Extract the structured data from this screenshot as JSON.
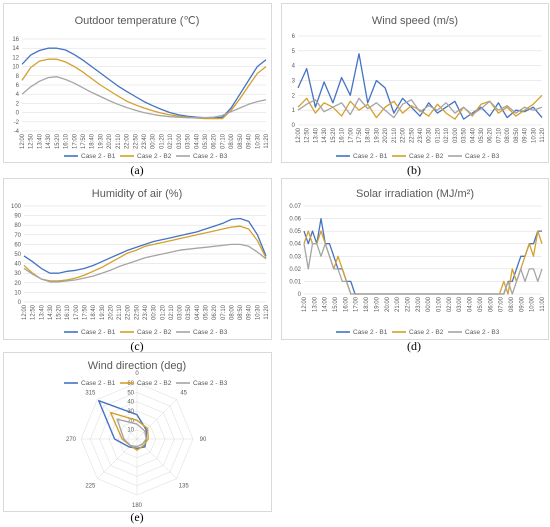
{
  "colors": {
    "b1": "#4472c4",
    "b2": "#d4a02a",
    "b3": "#a5a5a5",
    "grid": "#d9d9d9",
    "text": "#595959"
  },
  "legend": [
    "Case 2 - B1",
    "Case 2 - B2",
    "Case 2 - B3"
  ],
  "time_labels": [
    "12:00",
    "12:50",
    "13:40",
    "14:30",
    "15:20",
    "16:10",
    "17:00",
    "17:50",
    "18:40",
    "19:30",
    "20:20",
    "21:10",
    "22:00",
    "22:50",
    "23:40",
    "00:30",
    "01:20",
    "02:10",
    "03:00",
    "03:50",
    "04:40",
    "05:30",
    "06:20",
    "07:10",
    "08:00",
    "08:50",
    "09:40",
    "10:30",
    "11:20"
  ],
  "solar_time_labels": [
    "12:00",
    "13:00",
    "14:00",
    "15:00",
    "16:00",
    "17:00",
    "18:00",
    "19:00",
    "20:00",
    "21:00",
    "22:00",
    "23:00",
    "00:00",
    "01:00",
    "02:00",
    "03:00",
    "04:00",
    "05:00",
    "06:00",
    "07:00",
    "08:00",
    "09:00",
    "10:00",
    "11:00"
  ],
  "captions": {
    "a": "(a)",
    "b": "(b)",
    "c": "(c)",
    "d": "(d)",
    "e": "(e)"
  },
  "chart_data": [
    {
      "id": "temperature",
      "type": "line",
      "title": "Outdoor temperature (℃)",
      "ylim": [
        -4,
        16
      ],
      "yticks": [
        -4,
        -2,
        0,
        2,
        4,
        6,
        8,
        10,
        12,
        14,
        16
      ],
      "series": [
        {
          "name": "Case 2 - B1",
          "values": [
            10.5,
            12.5,
            13.5,
            14,
            14,
            13.6,
            12.6,
            11.4,
            10,
            8.6,
            7.2,
            5.8,
            4.6,
            3.5,
            2.4,
            1.5,
            0.7,
            0,
            -0.5,
            -0.8,
            -1,
            -1.1,
            -1.2,
            -1,
            1,
            4,
            7,
            10,
            11.5
          ]
        },
        {
          "name": "Case 2 - B2",
          "values": [
            7,
            9.8,
            11.2,
            11.6,
            11.6,
            11,
            10,
            8.8,
            7.4,
            6,
            4.8,
            3.6,
            2.5,
            1.7,
            1,
            0.4,
            -0.1,
            -0.5,
            -0.8,
            -1,
            -1.2,
            -1.3,
            -1.3,
            -1.3,
            0.5,
            3,
            5.8,
            8.5,
            10
          ]
        },
        {
          "name": "Case 2 - B3",
          "values": [
            4,
            5.6,
            6.8,
            7.6,
            7.8,
            7.2,
            6.4,
            5.4,
            4.4,
            3.5,
            2.6,
            1.8,
            1.1,
            0.5,
            0,
            -0.4,
            -0.7,
            -0.9,
            -1,
            -1.1,
            -1.1,
            -1.1,
            -1,
            -0.6,
            0.2,
            1,
            1.8,
            2.4,
            2.8
          ]
        }
      ]
    },
    {
      "id": "wind_speed",
      "type": "line",
      "title": "Wind speed (m/s)",
      "ylim": [
        0,
        6
      ],
      "yticks": [
        0,
        1,
        2,
        3,
        4,
        5,
        6
      ],
      "series": [
        {
          "name": "Case 2 - B1",
          "values": [
            2.5,
            3.8,
            1.2,
            2.9,
            1.5,
            3.2,
            2,
            4.8,
            1.5,
            3,
            2.5,
            0.8,
            1.8,
            1.2,
            0.6,
            1.5,
            0.8,
            1.2,
            1.6,
            0.4,
            0.8,
            1.2,
            0.6,
            1.5,
            0.5,
            1,
            0.9,
            1.2,
            0.5
          ]
        },
        {
          "name": "Case 2 - B2",
          "values": [
            1.2,
            1.8,
            0.8,
            1.5,
            1.2,
            0.6,
            1.6,
            1,
            1.4,
            0.5,
            1.2,
            1.6,
            0.8,
            1.3,
            1,
            0.6,
            1.4,
            0.8,
            0.4,
            1.2,
            0.6,
            1.4,
            1.6,
            0.8,
            1.2,
            0.6,
            1,
            1.4,
            2
          ]
        },
        {
          "name": "Case 2 - B3",
          "values": [
            1,
            1.4,
            1.7,
            0.9,
            1.2,
            1.5,
            0.7,
            1.8,
            1.1,
            1.5,
            1,
            0.5,
            1.4,
            1.7,
            0.9,
            1.3,
            1,
            1.5,
            0.8,
            1.2,
            0.7,
            1.1,
            1.6,
            1,
            1.3,
            0.8,
            1.2,
            1,
            1.2
          ]
        }
      ]
    },
    {
      "id": "humidity",
      "type": "line",
      "title": "Humidity of air (%)",
      "ylim": [
        0,
        100
      ],
      "yticks": [
        0,
        10,
        20,
        30,
        40,
        50,
        60,
        70,
        80,
        90,
        100
      ],
      "series": [
        {
          "name": "Case 2 - B1",
          "values": [
            48,
            42,
            35,
            30,
            30,
            32,
            33,
            35,
            38,
            42,
            46,
            50,
            54,
            57,
            60,
            63,
            65,
            67,
            69,
            71,
            73,
            76,
            79,
            82,
            86,
            87,
            84,
            70,
            48
          ]
        },
        {
          "name": "Case 2 - B2",
          "values": [
            38,
            30,
            24,
            22,
            22,
            23,
            25,
            28,
            32,
            36,
            41,
            46,
            51,
            54,
            58,
            60,
            62,
            64,
            66,
            68,
            70,
            72,
            74,
            76,
            78,
            79,
            76,
            64,
            46
          ]
        },
        {
          "name": "Case 2 - B3",
          "values": [
            35,
            29,
            24,
            21,
            21,
            22,
            23,
            25,
            27,
            30,
            33,
            37,
            40,
            43,
            46,
            48,
            50,
            52,
            54,
            55,
            56,
            57,
            58,
            59,
            60,
            60,
            58,
            52,
            45
          ]
        }
      ]
    },
    {
      "id": "solar",
      "type": "line",
      "title": "Solar irradiation (MJ/m²)",
      "ylim": [
        0,
        0.07
      ],
      "yticks": [
        0,
        0.01,
        0.02,
        0.03,
        0.04,
        0.05,
        0.06,
        0.07
      ],
      "series": [
        {
          "name": "Case 2 - B1",
          "values": [
            0.05,
            0.04,
            0.05,
            0.04,
            0.06,
            0.04,
            0.04,
            0.03,
            0.02,
            0.02,
            0.01,
            0.01,
            0,
            0,
            0,
            0,
            0,
            0,
            0,
            0,
            0,
            0,
            0,
            0,
            0,
            0,
            0,
            0,
            0,
            0,
            0,
            0,
            0,
            0,
            0,
            0,
            0,
            0,
            0,
            0,
            0,
            0,
            0,
            0,
            0,
            0,
            0,
            0,
            0.01,
            0.01,
            0.02,
            0.03,
            0.03,
            0.04,
            0.04,
            0.05,
            0.05
          ]
        },
        {
          "name": "Case 2 - B2",
          "values": [
            0.04,
            0.05,
            0.04,
            0.04,
            0.05,
            0.04,
            0.03,
            0.02,
            0.03,
            0.02,
            0.01,
            0,
            0,
            0,
            0,
            0,
            0,
            0,
            0,
            0,
            0,
            0,
            0,
            0,
            0,
            0,
            0,
            0,
            0,
            0,
            0,
            0,
            0,
            0,
            0,
            0,
            0,
            0,
            0,
            0,
            0,
            0,
            0,
            0,
            0,
            0,
            0,
            0.01,
            0,
            0.02,
            0.01,
            0.02,
            0.03,
            0.04,
            0.03,
            0.05,
            0.04
          ]
        },
        {
          "name": "Case 2 - B3",
          "values": [
            0.04,
            0.02,
            0.04,
            0.04,
            0.03,
            0.04,
            0.03,
            0.02,
            0.02,
            0.01,
            0.01,
            0,
            0,
            0,
            0,
            0,
            0,
            0,
            0,
            0,
            0,
            0,
            0,
            0,
            0,
            0,
            0,
            0,
            0,
            0,
            0,
            0,
            0,
            0,
            0,
            0,
            0,
            0,
            0,
            0,
            0,
            0,
            0,
            0,
            0,
            0,
            0,
            0,
            0.01,
            0,
            0.01,
            0.02,
            0.01,
            0.02,
            0.02,
            0.01,
            0.02
          ]
        }
      ]
    },
    {
      "id": "wind_direction",
      "type": "radar",
      "title": "Wind direction (deg)",
      "angles": [
        "0",
        "45",
        "90",
        "135",
        "180",
        "225",
        "270",
        "315"
      ],
      "rticks": [
        "10",
        "20",
        "30",
        "40",
        "50",
        "60"
      ],
      "rmax": 60,
      "series": [
        {
          "name": "Case 2 - B1",
          "values": [
            26,
            14,
            10,
            12,
            10,
            12,
            24,
            58
          ]
        },
        {
          "name": "Case 2 - B2",
          "values": [
            20,
            16,
            12,
            10,
            12,
            10,
            16,
            40
          ]
        },
        {
          "name": "Case 2 - B3",
          "values": [
            16,
            12,
            10,
            8,
            8,
            10,
            14,
            30
          ]
        }
      ]
    }
  ]
}
